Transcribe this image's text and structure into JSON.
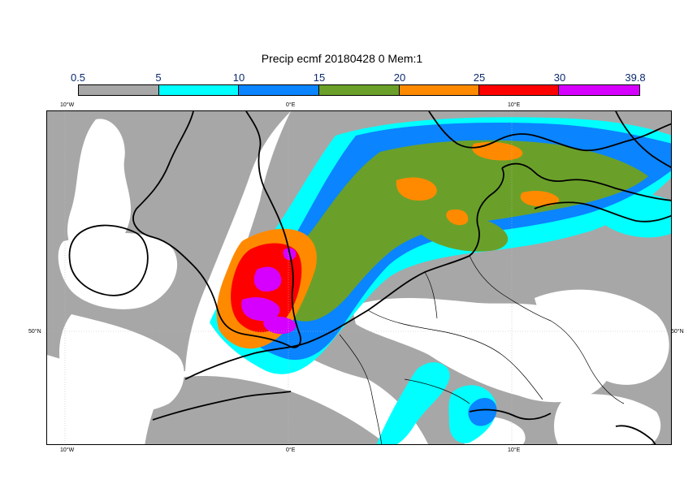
{
  "title": "Precip ecmf 20180428 0 Mem:1",
  "legend": {
    "labels": [
      "0.5",
      "5",
      "10",
      "15",
      "20",
      "25",
      "30",
      "39.8"
    ],
    "colors": [
      "#a7a7a7",
      "#00ffff",
      "#0a84ff",
      "#6aa02a",
      "#ff8a00",
      "#ff0000",
      "#d600ff"
    ]
  },
  "axes": {
    "lon_top": [
      "10°W",
      "0°E",
      "10°E"
    ],
    "lon_bottom": [
      "10°W",
      "0°E",
      "10°E"
    ],
    "lat_left": "50°N",
    "lat_right": "50°N"
  },
  "palette": {
    "land": "#ffffff",
    "light_precip": "#a7a7a7",
    "cyan": "#00ffff",
    "blue": "#0a84ff",
    "green": "#6aa02a",
    "orange": "#ff8a00",
    "red": "#ff0000",
    "magenta": "#d600ff",
    "coast": "#000000"
  }
}
